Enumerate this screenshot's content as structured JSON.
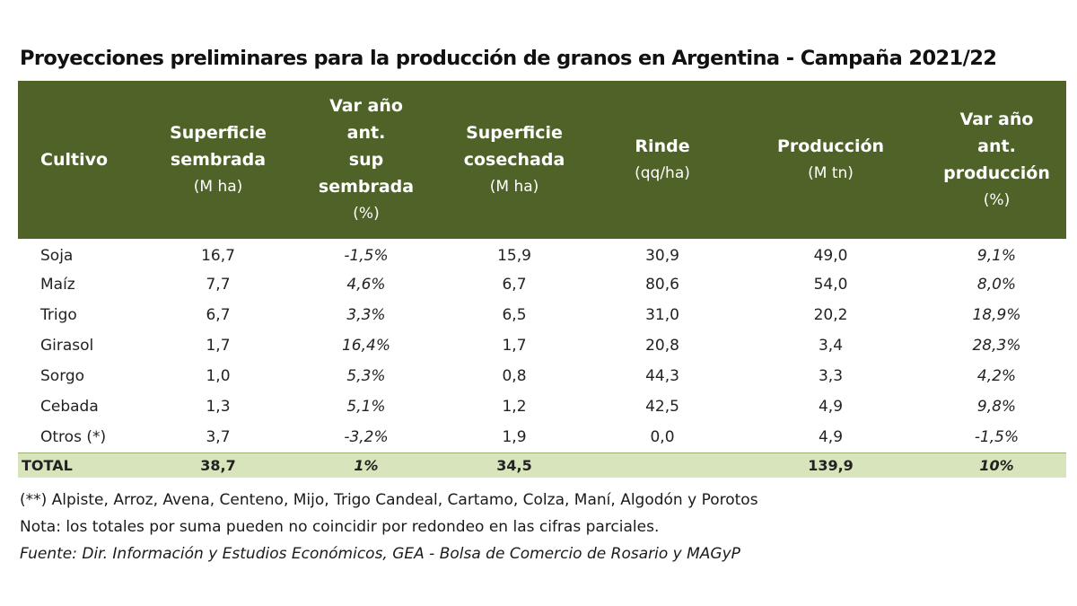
{
  "title": "Proyecciones preliminares para la producción de granos en Argentina - Campaña 2021/22",
  "header": {
    "cultivo": "Cultivo",
    "sup_sembrada": {
      "l1": "Superficie",
      "l2": "sembrada",
      "unit": "(M ha)"
    },
    "var_sup": {
      "l1": "Var año",
      "l2": "ant.",
      "l3": "sup",
      "l4": "sembrada",
      "unit": "(%)"
    },
    "sup_cosechada": {
      "l1": "Superficie",
      "l2": "cosechada",
      "unit": "(M ha)"
    },
    "rinde": {
      "l1": "Rinde",
      "unit": "(qq/ha)"
    },
    "produccion": {
      "l1": "Producción",
      "unit": "(M tn)"
    },
    "var_prod": {
      "l1": "Var año",
      "l2": "ant.",
      "l3": "producción",
      "unit": "(%)"
    }
  },
  "rows": [
    {
      "cultivo": "Soja",
      "sembrada": "16,7",
      "var_sup": "-1,5%",
      "cosechada": "15,9",
      "rinde": "30,9",
      "produccion": "49,0",
      "var_prod": "9,1%"
    },
    {
      "cultivo": "Maíz",
      "sembrada": "7,7",
      "var_sup": "4,6%",
      "cosechada": "6,7",
      "rinde": "80,6",
      "produccion": "54,0",
      "var_prod": "8,0%"
    },
    {
      "cultivo": "Trigo",
      "sembrada": "6,7",
      "var_sup": "3,3%",
      "cosechada": "6,5",
      "rinde": "31,0",
      "produccion": "20,2",
      "var_prod": "18,9%"
    },
    {
      "cultivo": "Girasol",
      "sembrada": "1,7",
      "var_sup": "16,4%",
      "cosechada": "1,7",
      "rinde": "20,8",
      "produccion": "3,4",
      "var_prod": "28,3%"
    },
    {
      "cultivo": "Sorgo",
      "sembrada": "1,0",
      "var_sup": "5,3%",
      "cosechada": "0,8",
      "rinde": "44,3",
      "produccion": "3,3",
      "var_prod": "4,2%"
    },
    {
      "cultivo": "Cebada",
      "sembrada": "1,3",
      "var_sup": "5,1%",
      "cosechada": "1,2",
      "rinde": "42,5",
      "produccion": "4,9",
      "var_prod": "9,8%"
    },
    {
      "cultivo": "Otros (*)",
      "sembrada": "3,7",
      "var_sup": "-3,2%",
      "cosechada": "1,9",
      "rinde": "0,0",
      "produccion": "4,9",
      "var_prod": "-1,5%"
    }
  ],
  "total": {
    "cultivo": "TOTAL",
    "sembrada": "38,7",
    "var_sup": "1%",
    "cosechada": "34,5",
    "rinde": "",
    "produccion": "139,9",
    "var_prod": "10%"
  },
  "footnotes": {
    "note1": "(**) Alpiste, Arroz, Avena, Centeno, Mijo, Trigo Candeal, Cartamo, Colza, Maní, Algodón y Porotos",
    "note2": "Nota: los totales por suma pueden no coincidir por redondeo en las cifras parciales.",
    "source": "Fuente: Dir. Información y Estudios Económicos, GEA - Bolsa de Comercio de Rosario y MAGyP"
  },
  "colors": {
    "header_bg": "#4f6228",
    "total_bg": "#d8e4bc"
  }
}
